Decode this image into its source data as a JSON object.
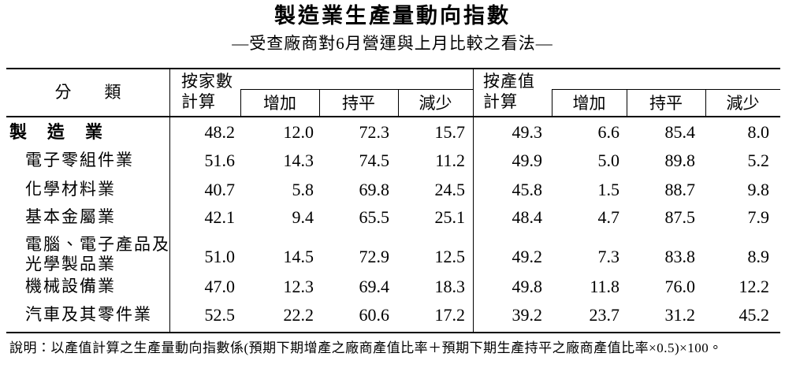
{
  "header": {
    "title": "製造業生產量動向指數",
    "subtitle": "—受查廠商對6月營運與上月比較之看法—"
  },
  "table": {
    "columns": {
      "category": "分　　類",
      "by_count": "按家數\n計算",
      "by_value": "按產值\n計算",
      "sub": [
        "增加",
        "持平",
        "減少",
        "增加",
        "持平",
        "減少"
      ]
    },
    "rows": [
      [
        "製　造　業",
        "48.2",
        "12.0",
        "72.3",
        "15.7",
        "49.3",
        "6.6",
        "85.4",
        "8.0"
      ],
      [
        "電子零組件業",
        "51.6",
        "14.3",
        "74.5",
        "11.2",
        "49.9",
        "5.0",
        "89.8",
        "5.2"
      ],
      [
        "化學材料業",
        "40.7",
        "5.8",
        "69.8",
        "24.5",
        "45.8",
        "1.5",
        "88.7",
        "9.8"
      ],
      [
        "基本金屬業",
        "42.1",
        "9.4",
        "65.5",
        "25.1",
        "48.4",
        "4.7",
        "87.5",
        "7.9"
      ],
      [
        "電腦、電子產品及\n光學製品業",
        "51.0",
        "14.5",
        "72.9",
        "12.5",
        "49.2",
        "7.3",
        "83.8",
        "8.9"
      ],
      [
        "機械設備業",
        "47.0",
        "12.3",
        "69.4",
        "18.3",
        "49.8",
        "11.8",
        "76.0",
        "12.2"
      ],
      [
        "汽車及其零件業",
        "52.5",
        "22.2",
        "60.6",
        "17.2",
        "39.2",
        "23.7",
        "31.2",
        "45.2"
      ]
    ]
  },
  "note": "說明：以產值計算之生產量動向指數係(預期下期增產之廠商產值比率＋預期下期生產持平之廠商產值比率×0.5)×100。"
}
